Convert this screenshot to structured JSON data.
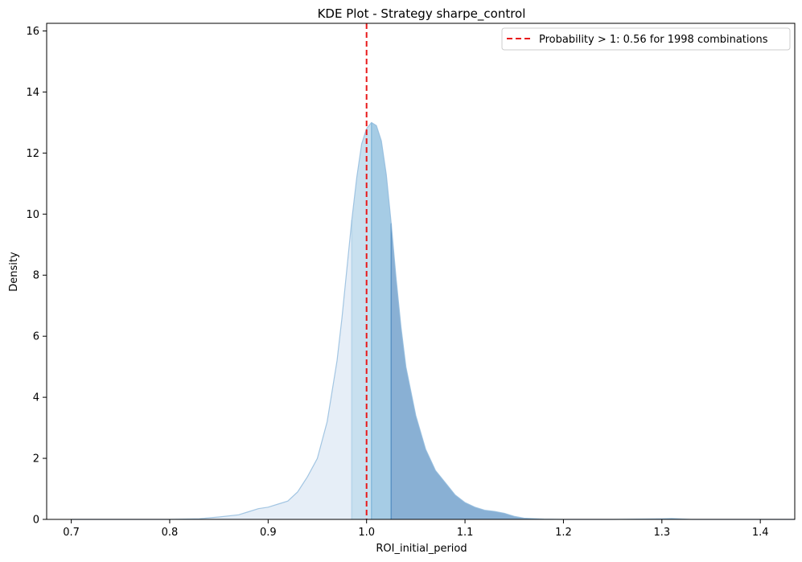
{
  "chart_data": {
    "type": "area",
    "title": "KDE Plot - Strategy sharpe_control",
    "xlabel": "ROI_initial_period",
    "ylabel": "Density",
    "xlim": [
      0.675,
      1.435
    ],
    "ylim": [
      0,
      16.25
    ],
    "xticks": [
      "0.7",
      "0.8",
      "0.9",
      "1.0",
      "1.1",
      "1.2",
      "1.3",
      "1.4"
    ],
    "yticks": [
      "0",
      "2",
      "4",
      "6",
      "8",
      "10",
      "12",
      "14",
      "16"
    ],
    "grid": false,
    "legend_position": "top-right",
    "reference_line": {
      "x": 1.0,
      "color": "#e8191a",
      "style": "dashed"
    },
    "legend_label": "Probability > 1: 0.56 for 1998 combinations",
    "density_curve": {
      "x": [
        0.7,
        0.75,
        0.8,
        0.83,
        0.85,
        0.87,
        0.88,
        0.89,
        0.9,
        0.91,
        0.92,
        0.93,
        0.94,
        0.95,
        0.96,
        0.97,
        0.975,
        0.98,
        0.985,
        0.99,
        0.995,
        1.0,
        1.005,
        1.01,
        1.015,
        1.02,
        1.025,
        1.03,
        1.035,
        1.04,
        1.05,
        1.06,
        1.07,
        1.08,
        1.09,
        1.1,
        1.11,
        1.12,
        1.13,
        1.14,
        1.15,
        1.16,
        1.18,
        1.2,
        1.25,
        1.3,
        1.31,
        1.33,
        1.35,
        1.4,
        1.435
      ],
      "y": [
        0.0,
        0.0,
        0.0,
        0.02,
        0.08,
        0.15,
        0.25,
        0.35,
        0.4,
        0.5,
        0.6,
        0.9,
        1.4,
        2.0,
        3.2,
        5.2,
        6.6,
        8.2,
        9.8,
        11.2,
        12.3,
        12.8,
        13.0,
        12.9,
        12.4,
        11.3,
        9.7,
        7.9,
        6.3,
        5.0,
        3.4,
        2.3,
        1.6,
        1.2,
        0.8,
        0.55,
        0.4,
        0.3,
        0.26,
        0.2,
        0.1,
        0.04,
        0.01,
        0.0,
        0.0,
        0.02,
        0.03,
        0.0,
        0.0,
        0.0,
        0.0
      ]
    },
    "bands": [
      {
        "from": 0.7,
        "to": 0.985,
        "color": "#dbe7f4",
        "opacity": 0.7
      },
      {
        "from": 0.985,
        "to": 1.005,
        "color": "#b6d6ea",
        "opacity": 0.75
      },
      {
        "from": 1.005,
        "to": 1.025,
        "color": "#88bbdc",
        "opacity": 0.75
      },
      {
        "from": 1.025,
        "to": 1.435,
        "color": "#5b92c4",
        "opacity": 0.72
      }
    ]
  }
}
